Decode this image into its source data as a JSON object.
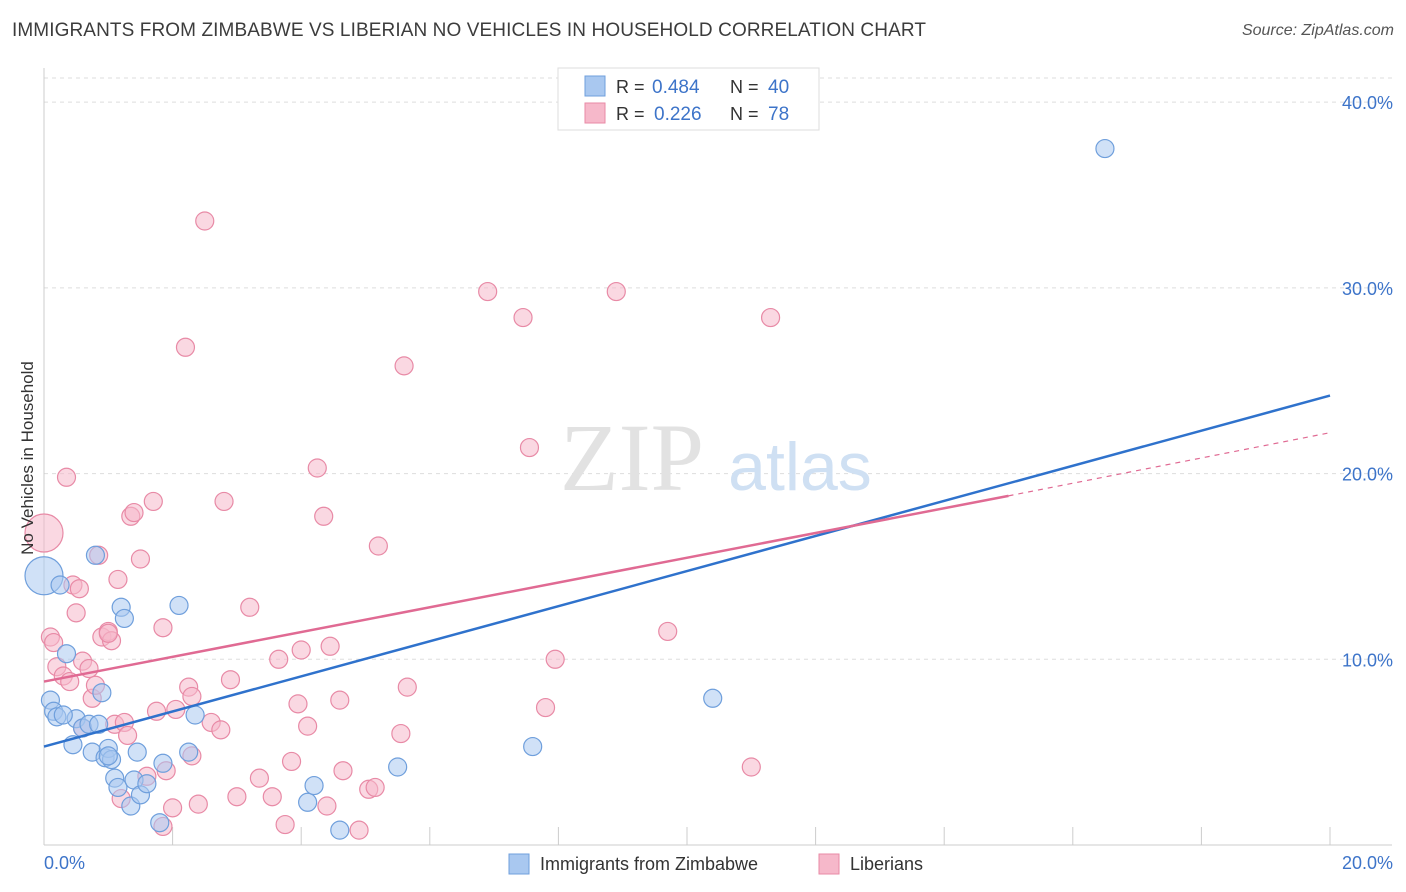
{
  "header": {
    "title": "IMMIGRANTS FROM ZIMBABWE VS LIBERIAN NO VEHICLES IN HOUSEHOLD CORRELATION CHART",
    "source": "Source: ZipAtlas.com"
  },
  "watermark": {
    "zip": "ZIP",
    "atlas": "atlas"
  },
  "legend_top": [
    {
      "r_label": "R =",
      "r_value": "0.484",
      "n_label": "N =",
      "n_value": "40"
    },
    {
      "r_label": "R =",
      "r_value": "0.226",
      "n_label": "N =",
      "n_value": "78"
    }
  ],
  "colors": {
    "zimbabwe_fill": "#a9c8f0",
    "zimbabwe_stroke": "#6f9fdc",
    "zimbabwe_line": "#2f72cc",
    "liberian_fill": "#f6b8ca",
    "liberian_stroke": "#e88aa6",
    "liberian_line": "#e06a93",
    "tick_text": "#3d74c9",
    "grid": "#dddddd"
  },
  "chart_data": {
    "type": "scatter",
    "title": "IMMIGRANTS FROM ZIMBABWE VS LIBERIAN NO VEHICLES IN HOUSEHOLD CORRELATION CHART",
    "xlabel": "",
    "ylabel": "No Vehicles in Household",
    "xlim": [
      0,
      20
    ],
    "ylim": [
      0,
      42
    ],
    "x_tick_labels": [
      "0.0%",
      "20.0%"
    ],
    "y_ticks": [
      10,
      20,
      30,
      40
    ],
    "y_tick_labels": [
      "10.0%",
      "20.0%",
      "30.0%",
      "40.0%"
    ],
    "grid": true,
    "legend_position": "bottom",
    "series": [
      {
        "name": "Immigrants from Zimbabwe",
        "r": 0.484,
        "n": 40,
        "trend": {
          "x": [
            0,
            20
          ],
          "y": [
            5.3,
            24.2
          ]
        },
        "points": [
          [
            0.0,
            14.5
          ],
          [
            0.1,
            7.8
          ],
          [
            0.15,
            7.2
          ],
          [
            0.2,
            6.9
          ],
          [
            0.25,
            14.0
          ],
          [
            0.35,
            10.3
          ],
          [
            0.45,
            5.4
          ],
          [
            0.5,
            6.8
          ],
          [
            0.6,
            6.3
          ],
          [
            0.7,
            6.5
          ],
          [
            0.75,
            5.0
          ],
          [
            0.8,
            15.6
          ],
          [
            0.85,
            6.5
          ],
          [
            0.9,
            8.2
          ],
          [
            0.95,
            4.7
          ],
          [
            1.0,
            5.2
          ],
          [
            1.05,
            4.6
          ],
          [
            1.1,
            3.6
          ],
          [
            1.15,
            3.1
          ],
          [
            1.2,
            12.8
          ],
          [
            1.25,
            12.2
          ],
          [
            1.35,
            2.1
          ],
          [
            1.4,
            3.5
          ],
          [
            1.45,
            5.0
          ],
          [
            1.5,
            2.7
          ],
          [
            1.6,
            3.3
          ],
          [
            1.8,
            1.2
          ],
          [
            1.85,
            4.4
          ],
          [
            2.1,
            12.9
          ],
          [
            2.25,
            5.0
          ],
          [
            2.35,
            7.0
          ],
          [
            4.1,
            2.3
          ],
          [
            4.2,
            3.2
          ],
          [
            4.6,
            0.8
          ],
          [
            5.5,
            4.2
          ],
          [
            7.6,
            5.3
          ],
          [
            10.4,
            7.9
          ],
          [
            16.5,
            37.5
          ],
          [
            0.3,
            7.0
          ],
          [
            1.0,
            4.8
          ]
        ]
      },
      {
        "name": "Liberians",
        "r": 0.226,
        "n": 78,
        "trend": {
          "x": [
            0,
            15
          ],
          "y": [
            8.8,
            18.8
          ]
        },
        "trend_dashed": {
          "x": [
            15,
            20
          ],
          "y": [
            18.8,
            22.2
          ]
        },
        "points": [
          [
            0.0,
            16.8
          ],
          [
            0.1,
            11.2
          ],
          [
            0.15,
            10.9
          ],
          [
            0.2,
            9.6
          ],
          [
            0.3,
            9.1
          ],
          [
            0.35,
            19.8
          ],
          [
            0.4,
            8.8
          ],
          [
            0.45,
            14.0
          ],
          [
            0.5,
            12.5
          ],
          [
            0.55,
            13.8
          ],
          [
            0.6,
            9.9
          ],
          [
            0.7,
            9.5
          ],
          [
            0.75,
            7.9
          ],
          [
            0.8,
            8.6
          ],
          [
            0.85,
            15.6
          ],
          [
            0.9,
            11.2
          ],
          [
            1.0,
            11.5
          ],
          [
            1.05,
            11.0
          ],
          [
            1.1,
            6.5
          ],
          [
            1.15,
            14.3
          ],
          [
            1.25,
            6.6
          ],
          [
            1.3,
            5.9
          ],
          [
            1.35,
            17.7
          ],
          [
            1.4,
            17.9
          ],
          [
            1.5,
            15.4
          ],
          [
            1.6,
            3.7
          ],
          [
            1.7,
            18.5
          ],
          [
            1.75,
            7.2
          ],
          [
            1.85,
            11.7
          ],
          [
            1.9,
            4.0
          ],
          [
            2.0,
            2.0
          ],
          [
            2.05,
            7.3
          ],
          [
            2.2,
            26.8
          ],
          [
            2.25,
            8.5
          ],
          [
            2.3,
            8.0
          ],
          [
            2.4,
            2.2
          ],
          [
            2.5,
            33.6
          ],
          [
            2.6,
            6.6
          ],
          [
            2.75,
            6.2
          ],
          [
            2.8,
            18.5
          ],
          [
            2.9,
            8.9
          ],
          [
            3.0,
            2.6
          ],
          [
            3.2,
            12.8
          ],
          [
            3.35,
            3.6
          ],
          [
            3.55,
            2.6
          ],
          [
            3.65,
            10.0
          ],
          [
            3.75,
            1.1
          ],
          [
            3.85,
            4.5
          ],
          [
            3.95,
            7.6
          ],
          [
            4.0,
            10.5
          ],
          [
            4.1,
            6.4
          ],
          [
            4.25,
            20.3
          ],
          [
            4.35,
            17.7
          ],
          [
            4.45,
            10.7
          ],
          [
            4.6,
            7.8
          ],
          [
            4.65,
            4.0
          ],
          [
            4.9,
            0.8
          ],
          [
            5.05,
            3.0
          ],
          [
            5.15,
            3.1
          ],
          [
            5.2,
            16.1
          ],
          [
            5.55,
            6.0
          ],
          [
            5.6,
            25.8
          ],
          [
            5.65,
            8.5
          ],
          [
            6.9,
            29.8
          ],
          [
            7.45,
            28.4
          ],
          [
            7.55,
            21.4
          ],
          [
            7.8,
            7.4
          ],
          [
            7.95,
            10.0
          ],
          [
            8.9,
            29.8
          ],
          [
            9.7,
            11.5
          ],
          [
            11.0,
            4.2
          ],
          [
            11.3,
            28.4
          ],
          [
            2.3,
            4.8
          ],
          [
            1.2,
            2.5
          ],
          [
            1.0,
            11.4
          ],
          [
            0.6,
            6.3
          ],
          [
            1.85,
            1.0
          ],
          [
            4.4,
            2.1
          ]
        ]
      }
    ]
  }
}
